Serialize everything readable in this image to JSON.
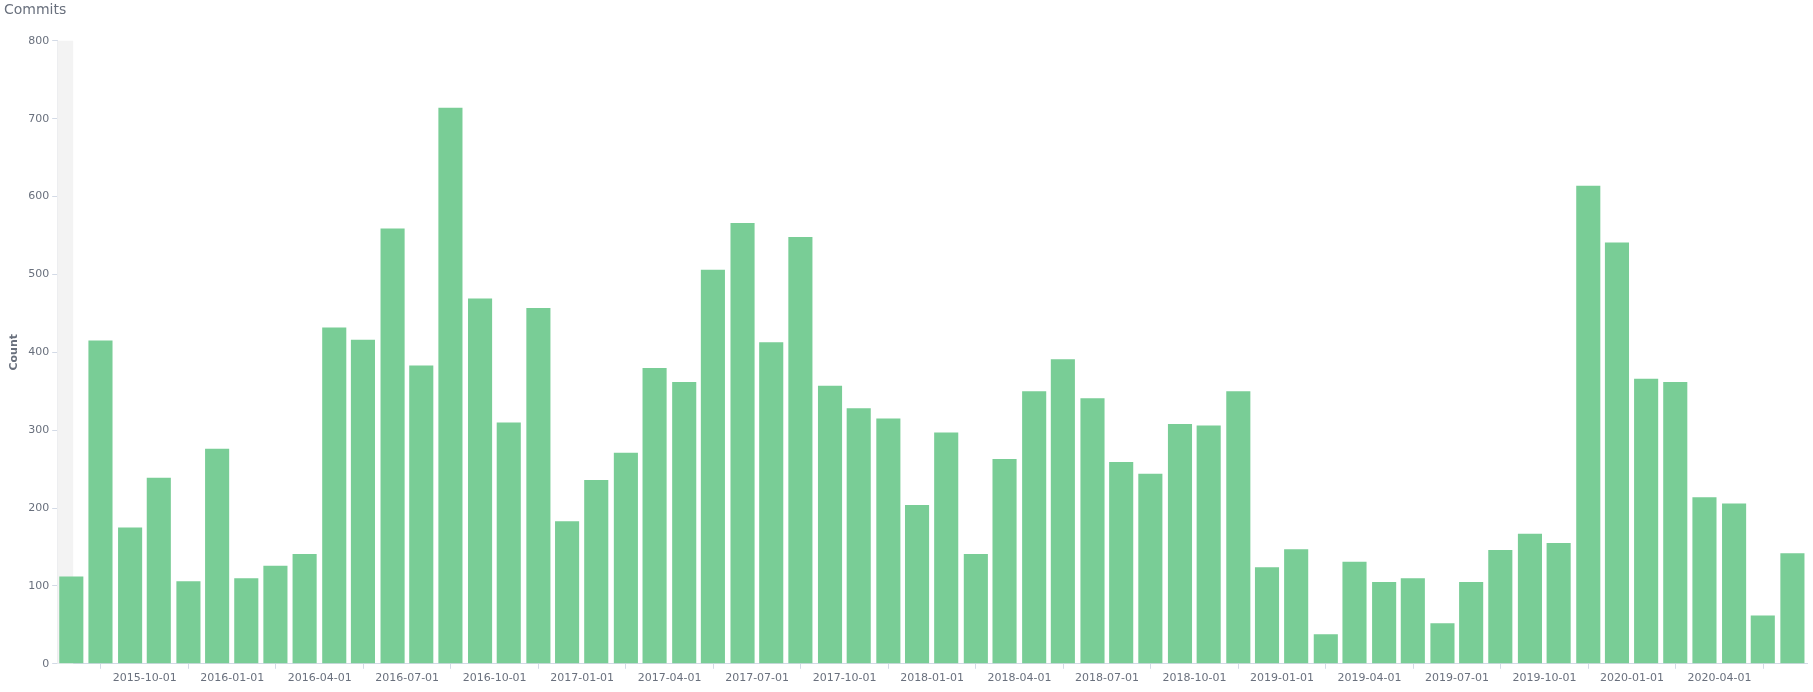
{
  "chart_data": {
    "type": "bar",
    "title": "Commits",
    "ylabel": "Count",
    "color": "#79cd96",
    "x": [
      "2015-07-16",
      "2015-08-16",
      "2015-09-16",
      "2015-10-16",
      "2015-11-16",
      "2015-12-16",
      "2016-01-16",
      "2016-02-15",
      "2016-03-16",
      "2016-04-16",
      "2016-05-16",
      "2016-06-16",
      "2016-07-16",
      "2016-08-16",
      "2016-09-16",
      "2016-10-16",
      "2016-11-16",
      "2016-12-16",
      "2017-01-16",
      "2017-02-15",
      "2017-03-16",
      "2017-04-16",
      "2017-05-16",
      "2017-06-16",
      "2017-07-16",
      "2017-08-16",
      "2017-09-16",
      "2017-10-16",
      "2017-11-16",
      "2017-12-16",
      "2018-01-16",
      "2018-02-15",
      "2018-03-16",
      "2018-04-16",
      "2018-05-16",
      "2018-06-16",
      "2018-07-16",
      "2018-08-16",
      "2018-09-16",
      "2018-10-16",
      "2018-11-16",
      "2018-12-16",
      "2019-01-16",
      "2019-02-15",
      "2019-03-16",
      "2019-04-16",
      "2019-05-16",
      "2019-06-16",
      "2019-07-16",
      "2019-08-16",
      "2019-09-16",
      "2019-10-16",
      "2019-11-16",
      "2019-12-16",
      "2020-01-16",
      "2020-02-15",
      "2020-03-16",
      "2020-04-16",
      "2020-05-16",
      "2020-06-16"
    ],
    "values": [
      112,
      415,
      175,
      239,
      106,
      276,
      110,
      126,
      141,
      432,
      416,
      559,
      383,
      714,
      469,
      310,
      457,
      183,
      236,
      271,
      380,
      362,
      506,
      566,
      413,
      548,
      357,
      328,
      315,
      204,
      297,
      141,
      263,
      350,
      391,
      341,
      259,
      244,
      308,
      306,
      350,
      124,
      147,
      38,
      131,
      105,
      110,
      52,
      105,
      146,
      167,
      155,
      614,
      541,
      366,
      362,
      214,
      206,
      62,
      142
    ],
    "xlim": [
      "2015-07-01",
      "2020-07-01"
    ],
    "xticks": [
      "2015-10-01",
      "2016-01-01",
      "2016-04-01",
      "2016-07-01",
      "2016-10-01",
      "2017-01-01",
      "2017-04-01",
      "2017-07-01",
      "2017-10-01",
      "2018-01-01",
      "2018-04-01",
      "2018-07-01",
      "2018-10-01",
      "2019-01-01",
      "2019-04-01",
      "2019-07-01",
      "2019-10-01",
      "2020-01-01",
      "2020-04-01"
    ],
    "ylim": [
      0,
      800
    ],
    "yticks": [
      0,
      100,
      200,
      300,
      400,
      500,
      600,
      700,
      800
    ],
    "bands": [
      {
        "axis": "x",
        "from": "2015-07-01",
        "to": "2015-07-18",
        "color": "#f3f3f3"
      }
    ],
    "grid": false,
    "legend": false
  }
}
